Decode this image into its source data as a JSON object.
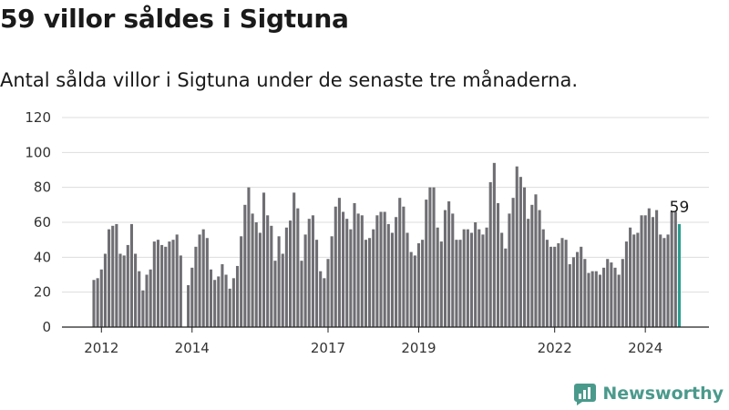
{
  "title": "59 villor såldes i Sigtuna",
  "subtitle": "Antal sålda villor i Sigtuna under de senaste tre månaderna.",
  "brand": {
    "name": "Newsworthy",
    "icon": "newsworthy-logo-icon"
  },
  "colors": {
    "bar": "#6f6e73",
    "highlight": "#2a9d8f",
    "grid": "#dddddd",
    "brand": "#4a9a8c"
  },
  "chart_data": {
    "type": "bar",
    "title": "",
    "xlabel": "",
    "ylabel": "",
    "ylim": [
      0,
      120
    ],
    "yticks": [
      0,
      20,
      40,
      60,
      80,
      100,
      120
    ],
    "xtick_labels": [
      {
        "label": "2012",
        "index": 2
      },
      {
        "label": "2014",
        "index": 26
      },
      {
        "label": "2017",
        "index": 62
      },
      {
        "label": "2019",
        "index": 86
      },
      {
        "label": "2022",
        "index": 122
      },
      {
        "label": "2024",
        "index": 146
      }
    ],
    "highlight_last": true,
    "last_label": "59",
    "grid": true,
    "values": [
      27,
      28,
      33,
      42,
      56,
      58,
      59,
      42,
      41,
      47,
      59,
      42,
      32,
      21,
      30,
      33,
      49,
      50,
      47,
      46,
      49,
      50,
      53,
      41,
      0,
      24,
      34,
      46,
      53,
      56,
      51,
      33,
      27,
      29,
      36,
      30,
      22,
      28,
      35,
      52,
      70,
      80,
      65,
      60,
      54,
      77,
      64,
      58,
      38,
      52,
      42,
      57,
      61,
      77,
      68,
      38,
      53,
      62,
      64,
      50,
      32,
      28,
      39,
      52,
      69,
      74,
      66,
      62,
      56,
      71,
      65,
      64,
      50,
      51,
      56,
      64,
      66,
      66,
      59,
      54,
      63,
      74,
      69,
      54,
      43,
      41,
      48,
      50,
      73,
      80,
      80,
      57,
      49,
      67,
      72,
      65,
      50,
      50,
      56,
      56,
      54,
      60,
      56,
      53,
      57,
      83,
      94,
      71,
      54,
      45,
      65,
      74,
      92,
      86,
      80,
      62,
      70,
      76,
      67,
      56,
      50,
      46,
      46,
      48,
      51,
      50,
      36,
      40,
      43,
      46,
      39,
      31,
      32,
      32,
      30,
      34,
      39,
      37,
      34,
      30,
      39,
      49,
      57,
      53,
      54,
      64,
      64,
      68,
      63,
      67,
      53,
      51,
      53,
      66,
      66,
      59
    ]
  }
}
